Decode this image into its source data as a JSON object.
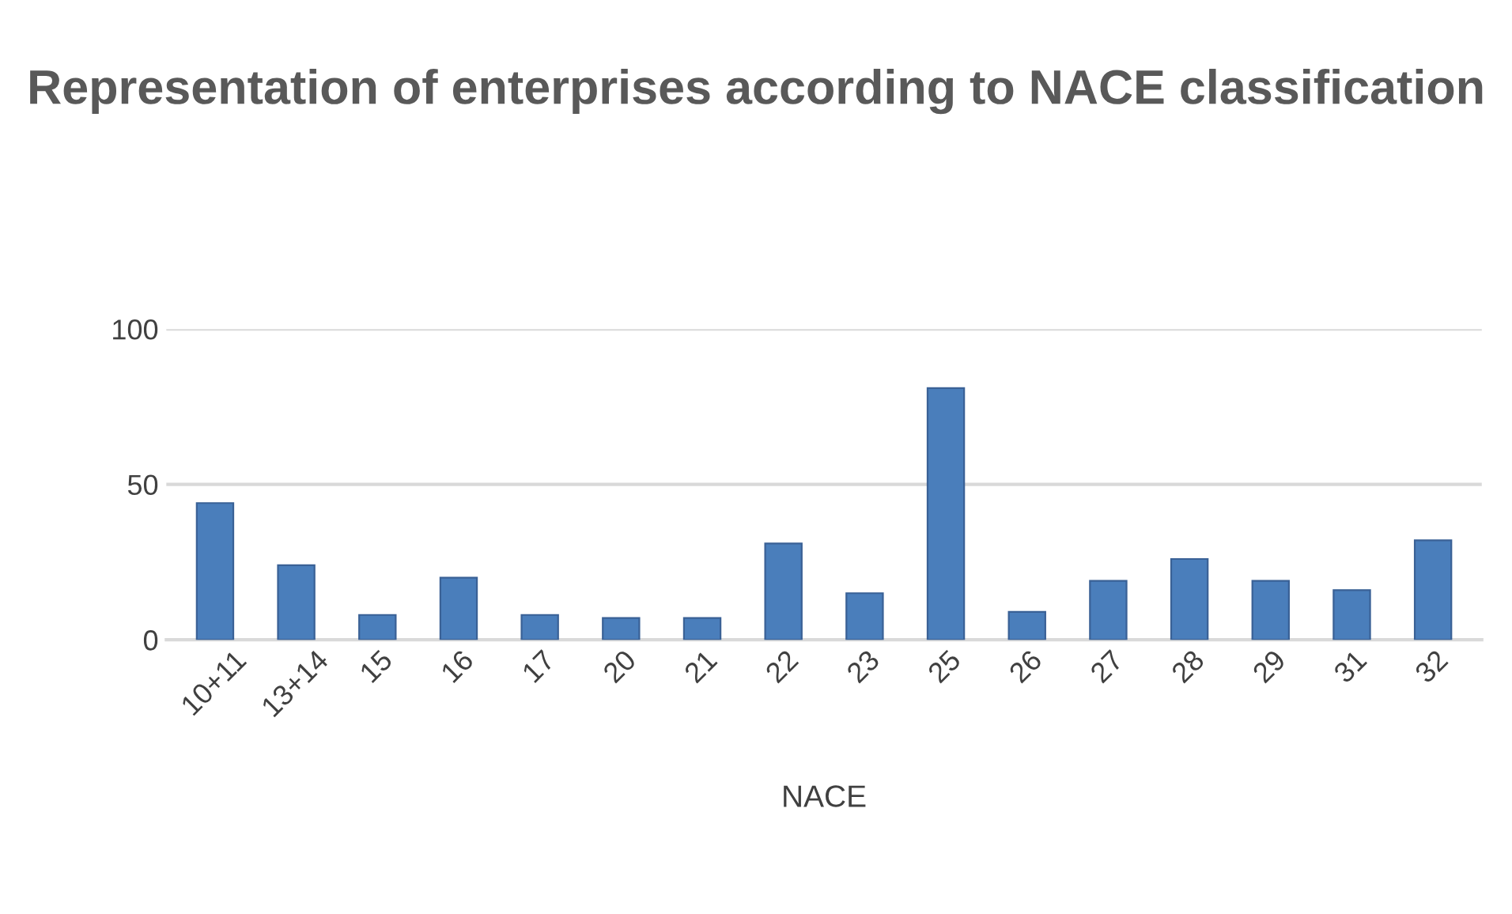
{
  "chart_data": {
    "type": "bar",
    "title": "Representation of enterprises according to NACE classification",
    "xlabel": "NACE",
    "categories": [
      "10+11",
      "13+14",
      "15",
      "16",
      "17",
      "20",
      "21",
      "22",
      "23",
      "25",
      "26",
      "27",
      "28",
      "29",
      "31",
      "32"
    ],
    "values": [
      44,
      24,
      8,
      20,
      8,
      7,
      7,
      31,
      15,
      81,
      9,
      19,
      26,
      19,
      16,
      32
    ],
    "color": "#4a7ebb",
    "ylim": [
      0,
      100
    ],
    "yticks": [
      0,
      50,
      100
    ],
    "grid": "y"
  }
}
